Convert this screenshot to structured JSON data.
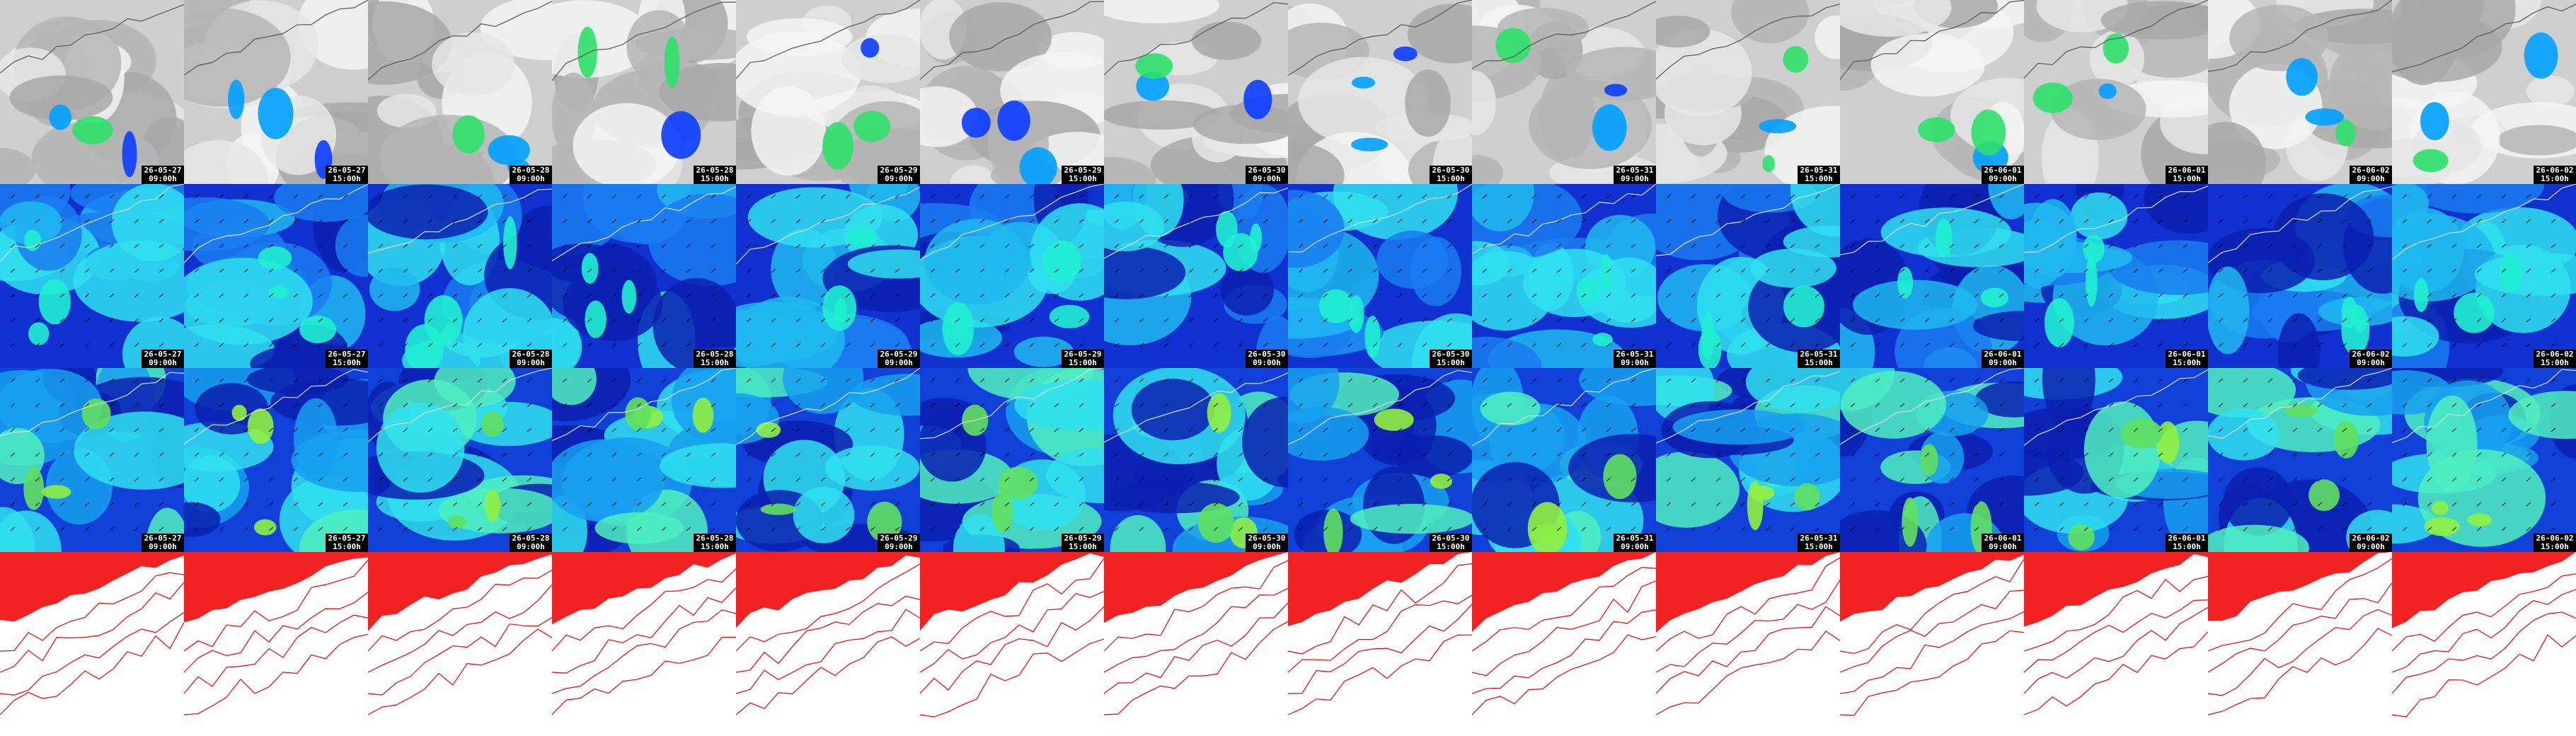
{
  "rows": [
    {
      "labels": [
        {
          "date": "26-05-27",
          "time": "09:00h"
        },
        {
          "date": "26-05-27",
          "time": "15:00h"
        },
        {
          "date": "26-05-28",
          "time": "09:00h"
        },
        {
          "date": "26-05-28",
          "time": "15:00h"
        },
        {
          "date": "26-05-29",
          "time": "09:00h"
        },
        {
          "date": "26-05-29",
          "time": "15:00h"
        },
        {
          "date": "26-05-30",
          "time": "09:00h"
        },
        {
          "date": "26-05-30",
          "time": "15:00h"
        },
        {
          "date": "26-05-31",
          "time": "09:00h"
        },
        {
          "date": "26-05-31",
          "time": "15:00h"
        },
        {
          "date": "26-06-01",
          "time": "09:00h"
        },
        {
          "date": "26-06-01",
          "time": "15:00h"
        },
        {
          "date": "26-06-02",
          "time": "09:00h"
        },
        {
          "date": "26-06-02",
          "time": "15:00h"
        }
      ]
    },
    {
      "labels": [
        {
          "date": "26-05-27",
          "time": "09:00h"
        },
        {
          "date": "26-05-27",
          "time": "15:00h"
        },
        {
          "date": "26-05-28",
          "time": "09:00h"
        },
        {
          "date": "26-05-28",
          "time": "15:00h"
        },
        {
          "date": "26-05-29",
          "time": "09:00h"
        },
        {
          "date": "26-05-29",
          "time": "15:00h"
        },
        {
          "date": "26-05-30",
          "time": "09:00h"
        },
        {
          "date": "26-05-30",
          "time": "15:00h"
        },
        {
          "date": "26-05-31",
          "time": "09:00h"
        },
        {
          "date": "26-05-31",
          "time": "15:00h"
        },
        {
          "date": "26-06-01",
          "time": "09:00h"
        },
        {
          "date": "26-06-01",
          "time": "15:00h"
        },
        {
          "date": "26-06-02",
          "time": "09:00h"
        },
        {
          "date": "26-06-02",
          "time": "15:00h"
        }
      ]
    },
    {
      "labels": [
        {
          "date": "26-05-27",
          "time": "09:00h"
        },
        {
          "date": "26-05-27",
          "time": "15:00h"
        },
        {
          "date": "26-05-28",
          "time": "09:00h"
        },
        {
          "date": "26-05-28",
          "time": "15:00h"
        },
        {
          "date": "26-05-29",
          "time": "09:00h"
        },
        {
          "date": "26-05-29",
          "time": "15:00h"
        },
        {
          "date": "26-05-30",
          "time": "09:00h"
        },
        {
          "date": "26-05-30",
          "time": "15:00h"
        },
        {
          "date": "26-05-31",
          "time": "09:00h"
        },
        {
          "date": "26-05-31",
          "time": "15:00h"
        },
        {
          "date": "26-06-01",
          "time": "09:00h"
        },
        {
          "date": "26-06-01",
          "time": "15:00h"
        },
        {
          "date": "26-06-02",
          "time": "09:00h"
        },
        {
          "date": "26-06-02",
          "time": "15:00h"
        }
      ]
    }
  ]
}
